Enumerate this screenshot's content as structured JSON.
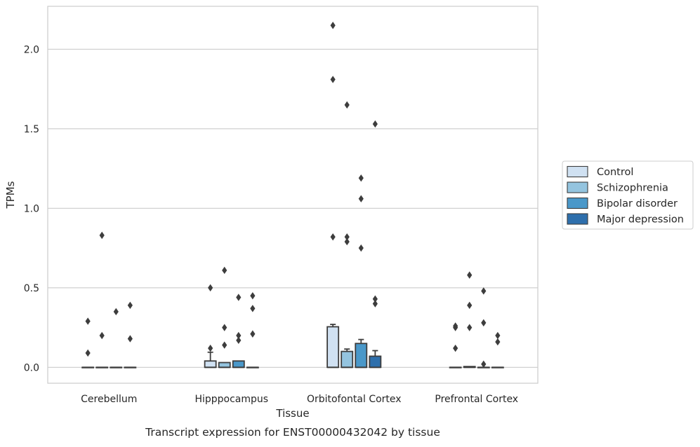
{
  "chart_data": {
    "type": "box",
    "title": "",
    "caption": "Transcript expression for ENST00000432042 by tissue",
    "xlabel": "Tissue",
    "ylabel": "TPMs",
    "ylim": [
      -0.1,
      2.27
    ],
    "yticks": [
      0.0,
      0.5,
      1.0,
      1.5,
      2.0
    ],
    "ytick_labels": [
      "0.0",
      "0.5",
      "1.0",
      "1.5",
      "2.0"
    ],
    "grid": true,
    "legend_position": "right",
    "categories": [
      "Cerebellum",
      "Hipppocampus",
      "Orbitofontal Cortex",
      "Prefrontal Cortex"
    ],
    "series": [
      {
        "name": "Control",
        "color": "#d0e1f2",
        "groups": [
          {
            "q1": 0,
            "median": 0,
            "q3": 0,
            "whisker_low": 0,
            "whisker_high": 0,
            "outliers": [
              0.29,
              0.09
            ]
          },
          {
            "q1": 0,
            "median": 0,
            "q3": 0.04,
            "whisker_low": 0,
            "whisker_high": 0.095,
            "outliers": [
              0.5,
              0.12
            ]
          },
          {
            "q1": 0,
            "median": 0,
            "q3": 0.255,
            "whisker_low": 0,
            "whisker_high": 0.27,
            "outliers": [
              2.15,
              1.81,
              0.82
            ]
          },
          {
            "q1": 0,
            "median": 0,
            "q3": 0,
            "whisker_low": 0,
            "whisker_high": 0,
            "outliers": [
              0.26,
              0.25,
              0.12
            ]
          }
        ]
      },
      {
        "name": "Schizophrenia",
        "color": "#94c4df",
        "groups": [
          {
            "q1": 0,
            "median": 0,
            "q3": 0,
            "whisker_low": 0,
            "whisker_high": 0,
            "outliers": [
              0.83,
              0.2
            ]
          },
          {
            "q1": 0,
            "median": 0,
            "q3": 0.03,
            "whisker_low": 0,
            "whisker_high": 0.03,
            "outliers": [
              0.61,
              0.25,
              0.14
            ]
          },
          {
            "q1": 0,
            "median": 0,
            "q3": 0.1,
            "whisker_low": 0,
            "whisker_high": 0.115,
            "outliers": [
              1.65,
              0.82,
              0.79
            ]
          },
          {
            "q1": 0,
            "median": 0,
            "q3": 0.005,
            "whisker_low": 0,
            "whisker_high": 0.005,
            "outliers": [
              0.58,
              0.39,
              0.25
            ]
          }
        ]
      },
      {
        "name": "Bipolar disorder",
        "color": "#4a98c9",
        "groups": [
          {
            "q1": 0,
            "median": 0,
            "q3": 0,
            "whisker_low": 0,
            "whisker_high": 0,
            "outliers": [
              0.35
            ]
          },
          {
            "q1": 0,
            "median": 0,
            "q3": 0.04,
            "whisker_low": 0,
            "whisker_high": 0.04,
            "outliers": [
              0.44,
              0.2,
              0.17
            ]
          },
          {
            "q1": 0,
            "median": 0,
            "q3": 0.15,
            "whisker_low": 0,
            "whisker_high": 0.175,
            "outliers": [
              1.19,
              1.06,
              0.75
            ]
          },
          {
            "q1": 0,
            "median": 0,
            "q3": 0,
            "whisker_low": 0,
            "whisker_high": 0,
            "outliers": [
              0.48,
              0.28,
              0.02
            ]
          }
        ]
      },
      {
        "name": "Major depression",
        "color": "#2e6fac",
        "groups": [
          {
            "q1": 0,
            "median": 0,
            "q3": 0,
            "whisker_low": 0,
            "whisker_high": 0,
            "outliers": [
              0.39,
              0.18
            ]
          },
          {
            "q1": 0,
            "median": 0,
            "q3": 0,
            "whisker_low": 0,
            "whisker_high": 0,
            "outliers": [
              0.45,
              0.37,
              0.21
            ]
          },
          {
            "q1": 0,
            "median": 0,
            "q3": 0.07,
            "whisker_low": 0,
            "whisker_high": 0.105,
            "outliers": [
              1.53,
              0.43,
              0.4
            ]
          },
          {
            "q1": 0,
            "median": 0,
            "q3": 0,
            "whisker_low": 0,
            "whisker_high": 0,
            "outliers": [
              0.2,
              0.16
            ]
          }
        ]
      }
    ]
  }
}
